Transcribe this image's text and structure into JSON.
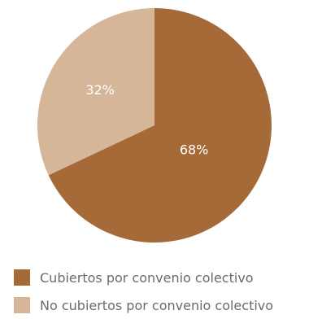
{
  "chart_data": {
    "type": "pie",
    "title": "",
    "slices": [
      {
        "label": "Cubiertos por convenio colectivo",
        "value": 68,
        "display": "68%",
        "color": "#A66A38"
      },
      {
        "label": "No cubiertos por convenio colectivo",
        "value": 32,
        "display": "32%",
        "color": "#D5B699"
      }
    ],
    "start_angle": "12 o'clock, clockwise",
    "legend_position": "bottom-left",
    "label_color": "#FFFFFF"
  }
}
